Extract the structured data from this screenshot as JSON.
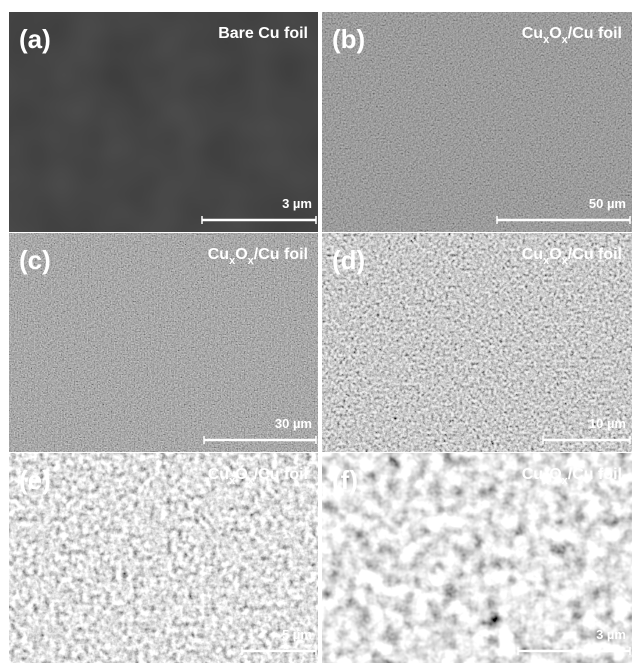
{
  "panels": [
    {
      "label": "(a)",
      "title": [
        {
          "text": "Bare Cu foil"
        }
      ],
      "scale": "3 µm"
    },
    {
      "label": "(b)",
      "title": [
        {
          "text": "Cu"
        },
        {
          "sub": "x"
        },
        {
          "text": "O"
        },
        {
          "sub": "x"
        },
        {
          "text": "/Cu foil"
        }
      ],
      "scale": "50 µm"
    },
    {
      "label": "(c)",
      "title": [
        {
          "text": "Cu"
        },
        {
          "sub": "x"
        },
        {
          "text": "O"
        },
        {
          "sub": "x"
        },
        {
          "text": "/Cu foil"
        }
      ],
      "scale": "30 µm"
    },
    {
      "label": "(d)",
      "title": [
        {
          "text": "Cu"
        },
        {
          "sub": "x"
        },
        {
          "text": "O"
        },
        {
          "sub": "x"
        },
        {
          "text": "/Cu foil"
        }
      ],
      "scale": "10 µm"
    },
    {
      "label": "(e)",
      "title": [
        {
          "text": "Cu"
        },
        {
          "sub": "x"
        },
        {
          "text": "O"
        },
        {
          "sub": "x"
        },
        {
          "text": "/Cu foil"
        }
      ],
      "scale": "5 µm"
    },
    {
      "label": "(f)",
      "title": [
        {
          "text": "Cu"
        },
        {
          "sub": "x"
        },
        {
          "text": "O"
        },
        {
          "sub": "x"
        },
        {
          "text": "/Cu foil"
        }
      ],
      "scale": "3 µm"
    }
  ]
}
